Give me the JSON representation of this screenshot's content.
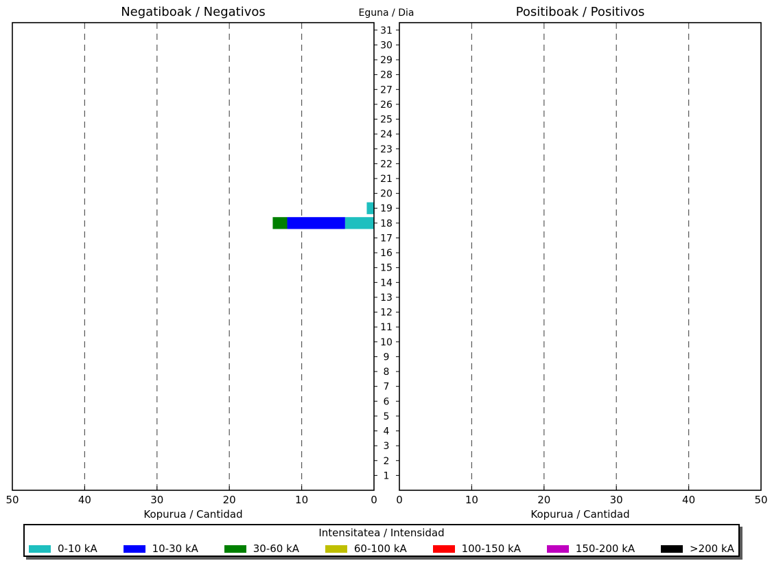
{
  "chart_data": {
    "type": "bar",
    "orientation": "horizontal",
    "stacked": true,
    "center_label": "Eguna / Dia",
    "days": [
      "1",
      "2",
      "3",
      "4",
      "5",
      "6",
      "7",
      "8",
      "9",
      "10",
      "11",
      "12",
      "13",
      "14",
      "15",
      "16",
      "17",
      "18",
      "19",
      "20",
      "21",
      "22",
      "23",
      "24",
      "25",
      "26",
      "27",
      "28",
      "29",
      "30",
      "31"
    ],
    "panels": [
      {
        "name": "negative",
        "title": "Negatiboak / Negativos",
        "xlabel": "Kopurua / Cantidad",
        "xlim": [
          0,
          50
        ],
        "direction": "reversed",
        "xticks": [
          "0",
          "10",
          "20",
          "30",
          "40",
          "50"
        ],
        "grid": "vertical dashed",
        "series": [
          {
            "name": "0-10 kA",
            "values": {
              "18": 4,
              "19": 1
            }
          },
          {
            "name": "10-30 kA",
            "values": {
              "18": 8
            }
          },
          {
            "name": "30-60 kA",
            "values": {
              "18": 2
            }
          },
          {
            "name": "60-100 kA",
            "values": {}
          },
          {
            "name": "100-150 kA",
            "values": {}
          },
          {
            "name": "150-200 kA",
            "values": {}
          },
          {
            "name": ">200 kA",
            "values": {}
          }
        ]
      },
      {
        "name": "positive",
        "title": "Positiboak / Positivos",
        "xlabel": "Kopurua / Cantidad",
        "xlim": [
          0,
          50
        ],
        "direction": "normal",
        "xticks": [
          "0",
          "10",
          "20",
          "30",
          "40",
          "50"
        ],
        "grid": "vertical dashed",
        "series": [
          {
            "name": "0-10 kA",
            "values": {}
          },
          {
            "name": "10-30 kA",
            "values": {}
          },
          {
            "name": "30-60 kA",
            "values": {}
          },
          {
            "name": "60-100 kA",
            "values": {}
          },
          {
            "name": "100-150 kA",
            "values": {}
          },
          {
            "name": "150-200 kA",
            "values": {}
          },
          {
            "name": ">200 kA",
            "values": {}
          }
        ]
      }
    ],
    "legend": {
      "title": "Intensitatea / Intensidad",
      "placement": "bottom",
      "items": [
        {
          "label": "0-10 kA",
          "color": "#1ebfbf"
        },
        {
          "label": "10-30 kA",
          "color": "#0000ff"
        },
        {
          "label": "30-60 kA",
          "color": "#008000"
        },
        {
          "label": "60-100 kA",
          "color": "#bfbf00"
        },
        {
          "label": "100-150 kA",
          "color": "#ff0000"
        },
        {
          "label": "150-200 kA",
          "color": "#bf00bf"
        },
        {
          "label": ">200 kA",
          "color": "#000000"
        }
      ]
    }
  }
}
